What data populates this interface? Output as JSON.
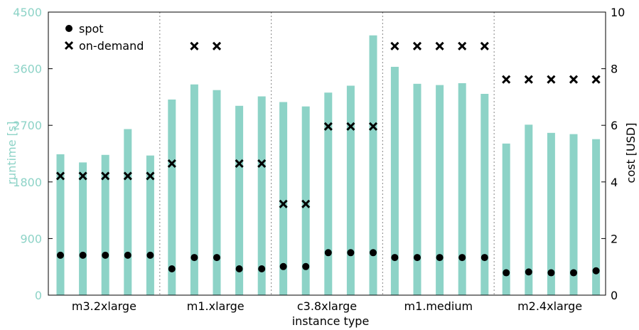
{
  "chart_data": {
    "type": "bar",
    "xlabel": "instance type",
    "ylabel_left": "runtime [s]",
    "ylabel_right": "cost [USD]",
    "ylim_left": [
      0,
      4500
    ],
    "ylim_right": [
      0,
      10
    ],
    "yticks_left": [
      "0",
      "900",
      "1800",
      "2700",
      "3600",
      "4500"
    ],
    "yticks_right": [
      "0",
      "2",
      "4",
      "6",
      "8",
      "10"
    ],
    "legend_position": "top-left",
    "colors": {
      "bar": "#8dd3c7",
      "marker": "#000000",
      "separator": "#999999"
    },
    "groups": [
      {
        "name": "m3.2xlarge",
        "runtime": [
          2240,
          2110,
          2230,
          2640,
          2220
        ],
        "spot": [
          1.41,
          1.41,
          1.41,
          1.41,
          1.41
        ],
        "on_demand": [
          4.21,
          4.21,
          4.21,
          4.21,
          4.21
        ]
      },
      {
        "name": "m1.xlarge",
        "runtime": [
          3110,
          3350,
          3260,
          3010,
          3160
        ],
        "spot": [
          0.93,
          1.33,
          1.33,
          0.93,
          0.93
        ],
        "on_demand": [
          4.65,
          8.8,
          8.8,
          4.65,
          4.65
        ]
      },
      {
        "name": "c3.8xlarge",
        "runtime": [
          3070,
          3000,
          3220,
          3330,
          4130
        ],
        "spot": [
          1.01,
          1.01,
          1.5,
          1.5,
          1.5
        ],
        "on_demand": [
          3.22,
          3.22,
          5.96,
          5.96,
          5.96
        ]
      },
      {
        "name": "m1.medium",
        "runtime": [
          3630,
          3360,
          3340,
          3370,
          3200
        ],
        "spot": [
          1.33,
          1.33,
          1.33,
          1.33,
          1.33
        ],
        "on_demand": [
          8.8,
          8.8,
          8.8,
          8.8,
          8.8
        ]
      },
      {
        "name": "m2.4xlarge",
        "runtime": [
          2410,
          2710,
          2580,
          2560,
          2480
        ],
        "spot": [
          0.79,
          0.82,
          0.79,
          0.79,
          0.86
        ],
        "on_demand": [
          7.62,
          7.62,
          7.62,
          7.62,
          7.62
        ]
      }
    ],
    "legend": [
      {
        "label": "spot",
        "marker": "circle"
      },
      {
        "label": "on-demand",
        "marker": "cross"
      }
    ]
  }
}
